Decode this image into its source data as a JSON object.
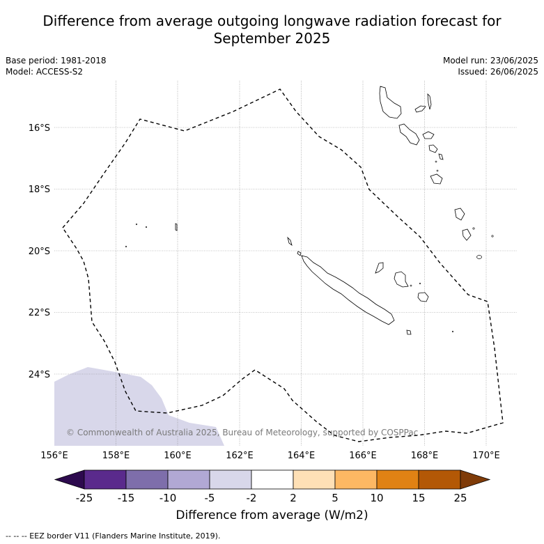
{
  "title_line1": "Difference from average outgoing longwave radiation forecast for",
  "title_line2": "September 2025",
  "base_period": "Base period: 1981-2018",
  "model": "Model: ACCESS-S2",
  "model_run": "Model run: 23/06/2025",
  "issued": "Issued: 26/06/2025",
  "copyright": "© Commonwealth of Australia 2025, Bureau of Meteorology, supported by COSPPac",
  "footer": "--  --  -- EEZ border V11 (Flanders Marine Institute, 2019).",
  "map": {
    "lat_labels": [
      "16°S",
      "18°S",
      "20°S",
      "22°S",
      "24°S"
    ],
    "lon_labels": [
      "156°E",
      "158°E",
      "160°E",
      "162°E",
      "164°E",
      "166°E",
      "168°E",
      "170°E"
    ]
  },
  "colorbar": {
    "title": "Difference from average (W/m2)",
    "tick_labels": [
      "-25",
      "-15",
      "-10",
      "-5",
      "-2",
      "2",
      "5",
      "10",
      "15",
      "25"
    ],
    "colors": {
      "lt_neg25": "#2d0a4e",
      "neg25_neg15": "#5a2a8c",
      "neg15_neg10": "#7e6eab",
      "neg10_neg5": "#b1a8d4",
      "neg5_neg2": "#d8d7ea",
      "neg2_2": "#ffffff",
      "2_5": "#fee0b6",
      "5_10": "#fdb863",
      "10_15": "#e08214",
      "15_25": "#b35806",
      "gt_25": "#7f3b08"
    }
  },
  "anomaly_color": "#d8d7ea"
}
